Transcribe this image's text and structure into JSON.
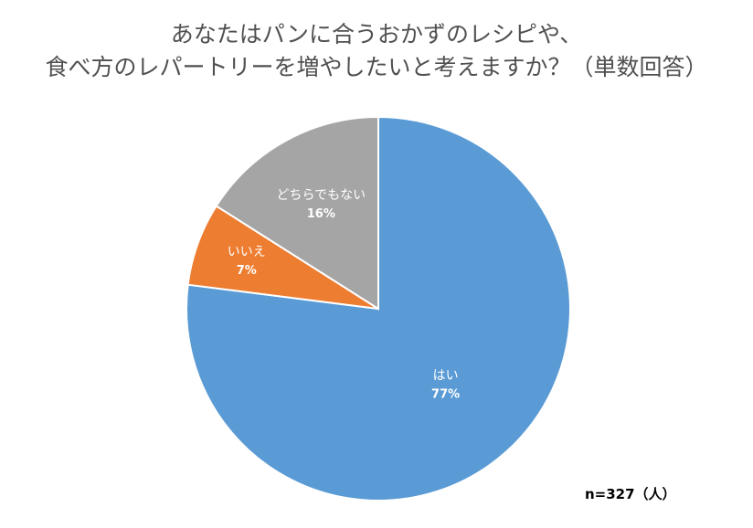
{
  "title": {
    "line1": "あなたはパンに合うおかずのレシピや、",
    "line2": "食べ方のレパートリーを増やしたいと考えますか？（単数回答）"
  },
  "note": "n=327（人）",
  "colors": {
    "yes": "#5b9bd5",
    "no": "#ed7d31",
    "neither": "#a5a5a5",
    "border": "#ffffff"
  },
  "chart_data": {
    "type": "pie",
    "title": "あなたはパンに合うおかずのレシピや、食べ方のレパートリーを増やしたいと考えますか？（単数回答）",
    "slices": [
      {
        "label": "はい",
        "value": 77,
        "value_label": "77%",
        "color": "#5b9bd5"
      },
      {
        "label": "いいえ",
        "value": 7,
        "value_label": "7%",
        "color": "#ed7d31"
      },
      {
        "label": "どちらでもない",
        "value": 16,
        "value_label": "16%",
        "color": "#a5a5a5"
      }
    ],
    "start_angle": "12 o'clock",
    "direction": "clockwise",
    "sample_size_note": "n=327（人）"
  }
}
